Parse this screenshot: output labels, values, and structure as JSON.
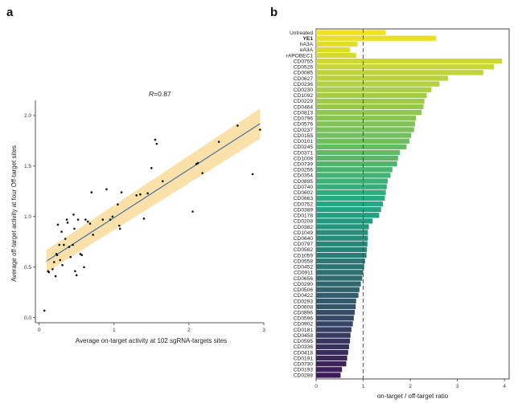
{
  "panels": {
    "a": "a",
    "b": "b"
  },
  "chart_data": [
    {
      "type": "scatter",
      "panel": "a",
      "annotation": {
        "prefix": "R",
        "suffix": "=0.87"
      },
      "xlabel": "Average on-target activity at 102 sgRNA-targets sites",
      "ylabel": "Average off-target activity at four Off-target sites",
      "xlim": [
        -0.05,
        3.0
      ],
      "ylim": [
        -0.05,
        2.15
      ],
      "xticks": [
        "0",
        "1",
        "2",
        "3"
      ],
      "yticks": [
        "0.0",
        "0.5",
        "1.0",
        "1.5",
        "2.0"
      ],
      "fit": {
        "x": [
          0.1,
          2.95
        ],
        "y": [
          0.56,
          1.92
        ],
        "band_low": [
          0.45,
          1.77
        ],
        "band_high": [
          0.67,
          2.07
        ]
      },
      "points": [
        [
          0.07,
          0.07
        ],
        [
          0.12,
          0.46
        ],
        [
          0.13,
          0.45
        ],
        [
          0.18,
          0.48
        ],
        [
          0.2,
          0.55
        ],
        [
          0.22,
          0.41
        ],
        [
          0.23,
          0.63
        ],
        [
          0.24,
          0.62
        ],
        [
          0.25,
          0.92
        ],
        [
          0.27,
          0.72
        ],
        [
          0.28,
          0.57
        ],
        [
          0.3,
          0.85
        ],
        [
          0.31,
          0.52
        ],
        [
          0.33,
          0.72
        ],
        [
          0.35,
          0.78
        ],
        [
          0.37,
          0.97
        ],
        [
          0.38,
          0.94
        ],
        [
          0.4,
          0.7
        ],
        [
          0.42,
          0.6
        ],
        [
          0.45,
          0.72
        ],
        [
          0.46,
          1.02
        ],
        [
          0.47,
          0.88
        ],
        [
          0.48,
          0.46
        ],
        [
          0.5,
          0.42
        ],
        [
          0.52,
          0.97
        ],
        [
          0.55,
          0.63
        ],
        [
          0.57,
          0.62
        ],
        [
          0.6,
          0.5
        ],
        [
          0.62,
          0.97
        ],
        [
          0.65,
          0.95
        ],
        [
          0.68,
          0.93
        ],
        [
          0.7,
          1.24
        ],
        [
          0.72,
          0.82
        ],
        [
          0.85,
          0.97
        ],
        [
          0.9,
          1.27
        ],
        [
          0.95,
          0.97
        ],
        [
          0.98,
          1.0
        ],
        [
          1.05,
          1.12
        ],
        [
          1.07,
          0.91
        ],
        [
          1.08,
          0.88
        ],
        [
          1.1,
          1.24
        ],
        [
          1.3,
          1.21
        ],
        [
          1.35,
          1.22
        ],
        [
          1.4,
          0.98
        ],
        [
          1.45,
          1.23
        ],
        [
          1.5,
          1.48
        ],
        [
          1.55,
          1.76
        ],
        [
          1.57,
          1.72
        ],
        [
          1.65,
          1.35
        ],
        [
          2.05,
          1.05
        ],
        [
          2.1,
          1.52
        ],
        [
          2.12,
          1.53
        ],
        [
          2.18,
          1.43
        ],
        [
          2.4,
          1.74
        ],
        [
          2.65,
          1.9
        ],
        [
          2.85,
          1.42
        ],
        [
          2.95,
          1.86
        ]
      ]
    },
    {
      "type": "bar",
      "orientation": "horizontal",
      "panel": "b",
      "xlabel": "on-target / off-target ratio",
      "xlim": [
        0,
        4.1
      ],
      "xticks": [
        "0",
        "1",
        "2",
        "3",
        "4"
      ],
      "reference_line": 1,
      "colors": {
        "start": "#f0e125",
        "mid": "#22a884",
        "end": "#3e1a58"
      },
      "categories": [
        "Untreated",
        "YE1",
        "hA3A",
        "eA3A",
        "rAPOBEC1",
        "CD0755",
        "CD0526",
        "CD0085",
        "CD0627",
        "CD0236",
        "CD0230",
        "CD1092",
        "CD0229",
        "CD0464",
        "CD0813",
        "CD0796",
        "CD0576",
        "CD0237",
        "CD0155",
        "CD0101",
        "CD0245",
        "CD0371",
        "CD1008",
        "CD0739",
        "CD0256",
        "CD0354",
        "CD0895",
        "CD0740",
        "CD0602",
        "CD0663",
        "CD0752",
        "CD0389",
        "CD0178",
        "CD0208",
        "CD0382",
        "CD1049",
        "CD0640",
        "CD0797",
        "CD0582",
        "CD1059",
        "CD0558",
        "CD0452",
        "CD0911",
        "CD0656",
        "CD0290",
        "CD0506",
        "CD0422",
        "CD0293",
        "CD0608",
        "CD0896",
        "CD0596",
        "CD0902",
        "CD0181",
        "CD0458",
        "CD0595",
        "CD0336",
        "CD0418",
        "CD0191",
        "CD0730",
        "CD0193",
        "CD0288"
      ],
      "bold": [
        "YE1"
      ],
      "values": [
        1.48,
        2.55,
        0.88,
        0.72,
        0.85,
        3.95,
        3.78,
        3.55,
        2.8,
        2.62,
        2.45,
        2.35,
        2.3,
        2.28,
        2.24,
        2.12,
        2.1,
        2.08,
        2.02,
        1.98,
        1.92,
        1.78,
        1.74,
        1.72,
        1.62,
        1.58,
        1.52,
        1.5,
        1.48,
        1.46,
        1.42,
        1.38,
        1.34,
        1.2,
        1.12,
        1.1,
        1.1,
        1.09,
        1.08,
        1.07,
        1.04,
        1.02,
        1.0,
        0.98,
        0.95,
        0.92,
        0.9,
        0.85,
        0.84,
        0.82,
        0.8,
        0.78,
        0.75,
        0.73,
        0.72,
        0.7,
        0.68,
        0.66,
        0.64,
        0.55,
        0.52
      ]
    }
  ]
}
